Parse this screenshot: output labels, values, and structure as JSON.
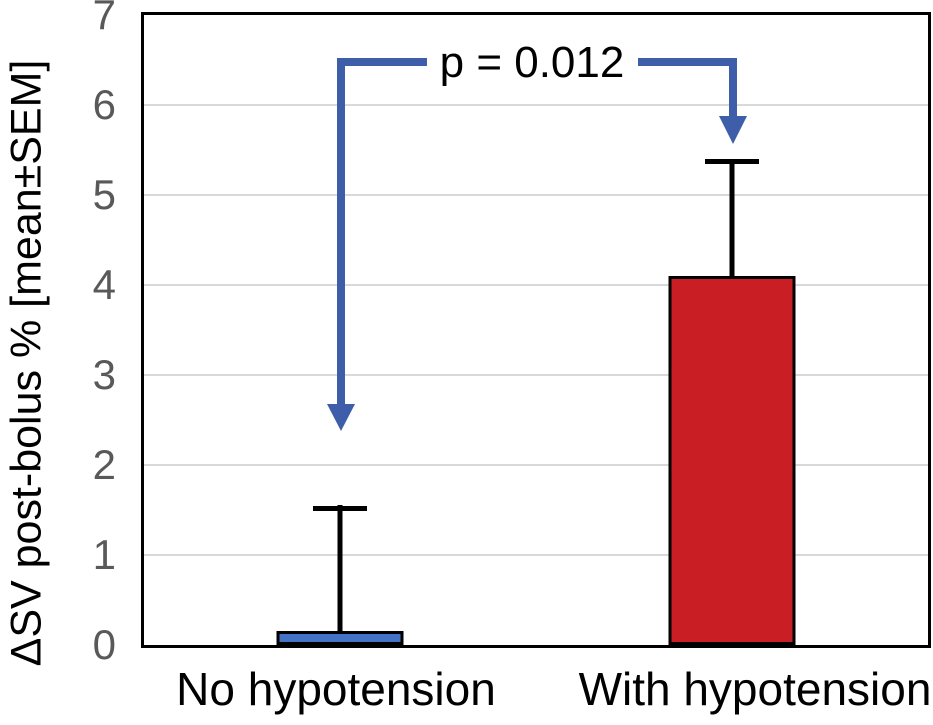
{
  "chart_data": {
    "type": "bar",
    "title": "",
    "xlabel": "",
    "ylabel": "ΔSV post-bolus % [mean±SEM]",
    "categories": [
      "No hypotension",
      "With hypotension"
    ],
    "values": [
      0.15,
      4.1
    ],
    "sem": [
      1.4,
      1.3
    ],
    "error_tops": [
      1.55,
      5.4
    ],
    "ylim": [
      0,
      7
    ],
    "yticks": [
      0,
      1,
      2,
      3,
      4,
      5,
      6,
      7
    ],
    "grid": true,
    "legend_position": "none",
    "bar_colors": [
      "#4472C4",
      "#C91E23"
    ],
    "bar_border_color": "#000000",
    "gridline_color": "#D9D9D9",
    "tick_label_color": "#595959",
    "annotation": {
      "text": "p = 0.012",
      "arrow_color": "#3E5EA9",
      "connects": [
        "No hypotension",
        "With hypotension"
      ]
    }
  }
}
